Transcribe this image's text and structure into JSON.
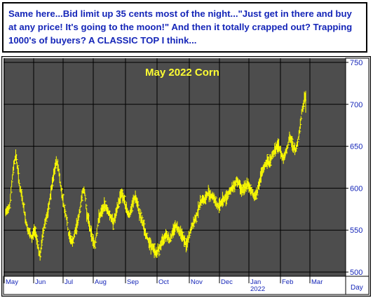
{
  "banner": {
    "text": "Same here...Bid limit up 35 cents most of the night...\"Just get in there and buy at any price! It's going to the moon!\" And then it totally crapped out? Trapping 1000's of buyers? A CLASSIC TOP I think..."
  },
  "colors": {
    "plot_background": "#4d4d4d",
    "price_bars": "#ffff00",
    "title": "#ffff33",
    "axis_text": "#1526b8",
    "grid": "#000000",
    "axis_panel": "#ffffff",
    "frame": "#000000"
  },
  "chart_data": {
    "type": "bar",
    "subtype": "ohlc-daily",
    "title": "May 2022 Corn",
    "xlabel": "",
    "ylabel": "",
    "ylim": [
      495,
      755
    ],
    "yticks": [
      500,
      550,
      600,
      650,
      700,
      750
    ],
    "y_axis_side": "right",
    "grid": true,
    "x_unit_label": "Day",
    "x_tick_labels": [
      "May",
      "Jun",
      "Jul",
      "Aug",
      "Sep",
      "Oct",
      "Nov",
      "Dec",
      "Jan",
      "Feb",
      "Mar"
    ],
    "x_tick_sublabels": [
      {
        "under": "Jan",
        "text": "2022"
      }
    ],
    "series": [
      {
        "values": [
          [
            0,
            570
          ],
          [
            2,
            580
          ],
          [
            3,
            605
          ],
          [
            4,
            628
          ],
          [
            5,
            640
          ],
          [
            6,
            622
          ],
          [
            7,
            600
          ],
          [
            8,
            590
          ],
          [
            9,
            575
          ],
          [
            10,
            560
          ],
          [
            11,
            550
          ],
          [
            12,
            545
          ],
          [
            13,
            540
          ],
          [
            14,
            550
          ],
          [
            15,
            545
          ],
          [
            16,
            530
          ],
          [
            17,
            518
          ],
          [
            18,
            540
          ],
          [
            19,
            555
          ],
          [
            20,
            565
          ],
          [
            21,
            572
          ],
          [
            22,
            590
          ],
          [
            23,
            605
          ],
          [
            24,
            620
          ],
          [
            25,
            632
          ],
          [
            26,
            625
          ],
          [
            27,
            605
          ],
          [
            28,
            590
          ],
          [
            29,
            575
          ],
          [
            30,
            565
          ],
          [
            31,
            545
          ],
          [
            32,
            540
          ],
          [
            33,
            535
          ],
          [
            34,
            545
          ],
          [
            35,
            555
          ],
          [
            36,
            565
          ],
          [
            37,
            580
          ],
          [
            38,
            598
          ],
          [
            39,
            595
          ],
          [
            40,
            570
          ],
          [
            41,
            560
          ],
          [
            42,
            548
          ],
          [
            43,
            538
          ],
          [
            44,
            532
          ],
          [
            45,
            550
          ],
          [
            46,
            565
          ],
          [
            47,
            570
          ],
          [
            48,
            575
          ],
          [
            49,
            580
          ],
          [
            50,
            575
          ],
          [
            51,
            570
          ],
          [
            52,
            565
          ],
          [
            53,
            560
          ],
          [
            54,
            565
          ],
          [
            55,
            575
          ],
          [
            56,
            585
          ],
          [
            57,
            595
          ],
          [
            58,
            590
          ],
          [
            59,
            580
          ],
          [
            60,
            572
          ],
          [
            61,
            568
          ],
          [
            62,
            575
          ],
          [
            63,
            585
          ],
          [
            64,
            590
          ],
          [
            65,
            580
          ],
          [
            66,
            570
          ],
          [
            67,
            562
          ],
          [
            68,
            556
          ],
          [
            69,
            545
          ],
          [
            70,
            540
          ],
          [
            71,
            535
          ],
          [
            72,
            530
          ],
          [
            73,
            528
          ],
          [
            74,
            522
          ],
          [
            75,
            525
          ],
          [
            76,
            530
          ],
          [
            77,
            535
          ],
          [
            78,
            540
          ],
          [
            79,
            546
          ],
          [
            80,
            542
          ],
          [
            81,
            538
          ],
          [
            82,
            545
          ],
          [
            83,
            552
          ],
          [
            84,
            555
          ],
          [
            85,
            552
          ],
          [
            86,
            548
          ],
          [
            87,
            545
          ],
          [
            88,
            538
          ],
          [
            89,
            532
          ],
          [
            90,
            538
          ],
          [
            91,
            548
          ],
          [
            92,
            555
          ],
          [
            93,
            560
          ],
          [
            94,
            566
          ],
          [
            95,
            575
          ],
          [
            96,
            582
          ],
          [
            97,
            588
          ],
          [
            98,
            585
          ],
          [
            99,
            590
          ],
          [
            100,
            595
          ],
          [
            101,
            592
          ],
          [
            102,
            590
          ],
          [
            103,
            588
          ],
          [
            104,
            580
          ],
          [
            105,
            578
          ],
          [
            106,
            582
          ],
          [
            107,
            585
          ],
          [
            108,
            588
          ],
          [
            109,
            590
          ],
          [
            110,
            595
          ],
          [
            111,
            598
          ],
          [
            112,
            600
          ],
          [
            113,
            605
          ],
          [
            114,
            610
          ],
          [
            115,
            606
          ],
          [
            116,
            600
          ],
          [
            117,
            598
          ],
          [
            118,
            600
          ],
          [
            119,
            605
          ],
          [
            120,
            602
          ],
          [
            121,
            598
          ],
          [
            122,
            593
          ],
          [
            123,
            590
          ],
          [
            124,
            596
          ],
          [
            125,
            605
          ],
          [
            126,
            615
          ],
          [
            127,
            622
          ],
          [
            128,
            628
          ],
          [
            129,
            632
          ],
          [
            130,
            630
          ],
          [
            131,
            636
          ],
          [
            132,
            642
          ],
          [
            133,
            646
          ],
          [
            134,
            650
          ],
          [
            135,
            648
          ],
          [
            136,
            640
          ],
          [
            137,
            636
          ],
          [
            138,
            642
          ],
          [
            139,
            650
          ],
          [
            140,
            660
          ],
          [
            141,
            656
          ],
          [
            142,
            648
          ],
          [
            143,
            645
          ],
          [
            144,
            655
          ],
          [
            145,
            670
          ],
          [
            146,
            690
          ],
          [
            147,
            702
          ],
          [
            148,
            712
          ]
        ]
      }
    ]
  }
}
